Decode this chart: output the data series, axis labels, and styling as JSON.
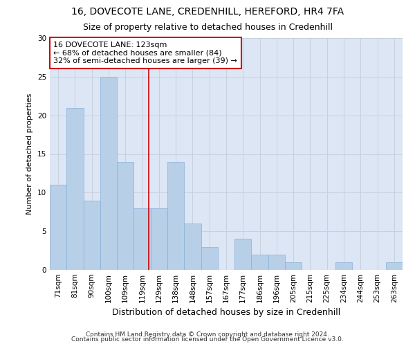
{
  "title": "16, DOVECOTE LANE, CREDENHILL, HEREFORD, HR4 7FA",
  "subtitle": "Size of property relative to detached houses in Credenhill",
  "xlabel": "Distribution of detached houses by size in Credenhill",
  "ylabel": "Number of detached properties",
  "categories": [
    "71sqm",
    "81sqm",
    "90sqm",
    "100sqm",
    "109sqm",
    "119sqm",
    "129sqm",
    "138sqm",
    "148sqm",
    "157sqm",
    "167sqm",
    "177sqm",
    "186sqm",
    "196sqm",
    "205sqm",
    "215sqm",
    "225sqm",
    "234sqm",
    "244sqm",
    "253sqm",
    "263sqm"
  ],
  "values": [
    11,
    21,
    9,
    25,
    14,
    8,
    8,
    14,
    6,
    3,
    0,
    4,
    2,
    2,
    1,
    0,
    0,
    1,
    0,
    0,
    1
  ],
  "bar_color": "#b8cfe8",
  "bar_edge_color": "#8ab0d8",
  "annotation_text": "16 DOVECOTE LANE: 123sqm\n← 68% of detached houses are smaller (84)\n32% of semi-detached houses are larger (39) →",
  "annotation_box_color": "#ffffff",
  "annotation_box_edge_color": "#cc0000",
  "ylim": [
    0,
    30
  ],
  "yticks": [
    0,
    5,
    10,
    15,
    20,
    25,
    30
  ],
  "grid_color": "#c8d0dc",
  "bg_color": "#dce6f5",
  "footer_line1": "Contains HM Land Registry data © Crown copyright and database right 2024.",
  "footer_line2": "Contains public sector information licensed under the Open Government Licence v3.0.",
  "title_fontsize": 10,
  "subtitle_fontsize": 9,
  "xlabel_fontsize": 9,
  "ylabel_fontsize": 8,
  "tick_fontsize": 7.5,
  "annotation_fontsize": 8,
  "footer_fontsize": 6.5,
  "ref_line_color": "#cc0000",
  "ref_line_x": 5.4
}
